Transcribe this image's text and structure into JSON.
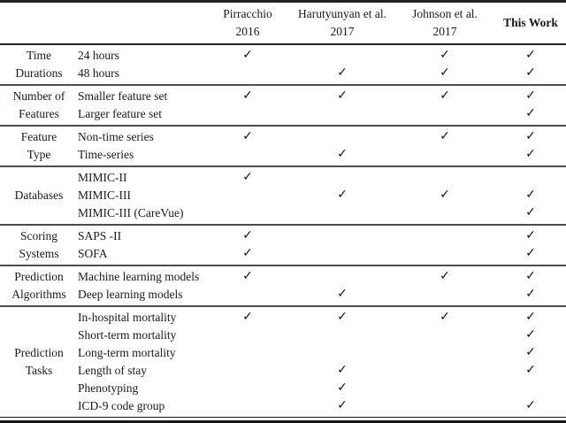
{
  "table": {
    "columns": [
      {
        "name": "Pirracchio",
        "year": "2016"
      },
      {
        "name": "Harutyunyan et al.",
        "year": "2017"
      },
      {
        "name": "Johnson et al.",
        "year": "2017"
      },
      {
        "name": "This Work",
        "year": ""
      }
    ],
    "check_glyph": "✓",
    "groups": [
      {
        "label_lines": [
          "Time",
          "Durations"
        ],
        "rows": [
          {
            "label": "24 hours",
            "checks": [
              true,
              false,
              true,
              true
            ]
          },
          {
            "label": "48 hours",
            "checks": [
              false,
              true,
              true,
              true
            ]
          }
        ]
      },
      {
        "label_lines": [
          "Number of",
          "Features"
        ],
        "rows": [
          {
            "label": "Smaller feature set",
            "checks": [
              true,
              true,
              true,
              true
            ]
          },
          {
            "label": "Larger feature set",
            "checks": [
              false,
              false,
              false,
              true
            ]
          }
        ]
      },
      {
        "label_lines": [
          "Feature",
          "Type"
        ],
        "rows": [
          {
            "label": "Non-time series",
            "checks": [
              true,
              false,
              true,
              true
            ]
          },
          {
            "label": "Time-series",
            "checks": [
              false,
              true,
              false,
              true
            ]
          }
        ]
      },
      {
        "label_lines": [
          "Databases"
        ],
        "rows": [
          {
            "label": "MIMIC-II",
            "checks": [
              true,
              false,
              false,
              false
            ]
          },
          {
            "label": "MIMIC-III",
            "checks": [
              false,
              true,
              true,
              true
            ]
          },
          {
            "label": "MIMIC-III (CareVue)",
            "checks": [
              false,
              false,
              false,
              true
            ]
          }
        ]
      },
      {
        "label_lines": [
          "Scoring",
          "Systems"
        ],
        "rows": [
          {
            "label": "SAPS -II",
            "checks": [
              true,
              false,
              false,
              true
            ]
          },
          {
            "label": "SOFA",
            "checks": [
              true,
              false,
              false,
              true
            ]
          }
        ]
      },
      {
        "label_lines": [
          "Prediction",
          "Algorithms"
        ],
        "rows": [
          {
            "label": "Machine learning models",
            "checks": [
              true,
              false,
              true,
              true
            ]
          },
          {
            "label": "Deep learning models",
            "checks": [
              false,
              true,
              false,
              true
            ]
          }
        ]
      },
      {
        "label_lines": [
          "Prediction",
          "Tasks"
        ],
        "rows": [
          {
            "label": "In-hospital mortality",
            "checks": [
              true,
              true,
              true,
              true
            ]
          },
          {
            "label": "Short-term mortality",
            "checks": [
              false,
              false,
              false,
              true
            ]
          },
          {
            "label": "Long-term mortality",
            "checks": [
              false,
              false,
              false,
              true
            ]
          },
          {
            "label": "Length of stay",
            "checks": [
              false,
              true,
              false,
              true
            ]
          },
          {
            "label": "Phenotyping",
            "checks": [
              false,
              true,
              false,
              false
            ]
          },
          {
            "label": "ICD-9 code group",
            "checks": [
              false,
              true,
              false,
              true
            ]
          }
        ]
      }
    ]
  },
  "colors": {
    "background": "#ffffff",
    "text": "#1a1a1a",
    "rule_dark": "#222222",
    "rule_gray": "#4d4d4d"
  }
}
